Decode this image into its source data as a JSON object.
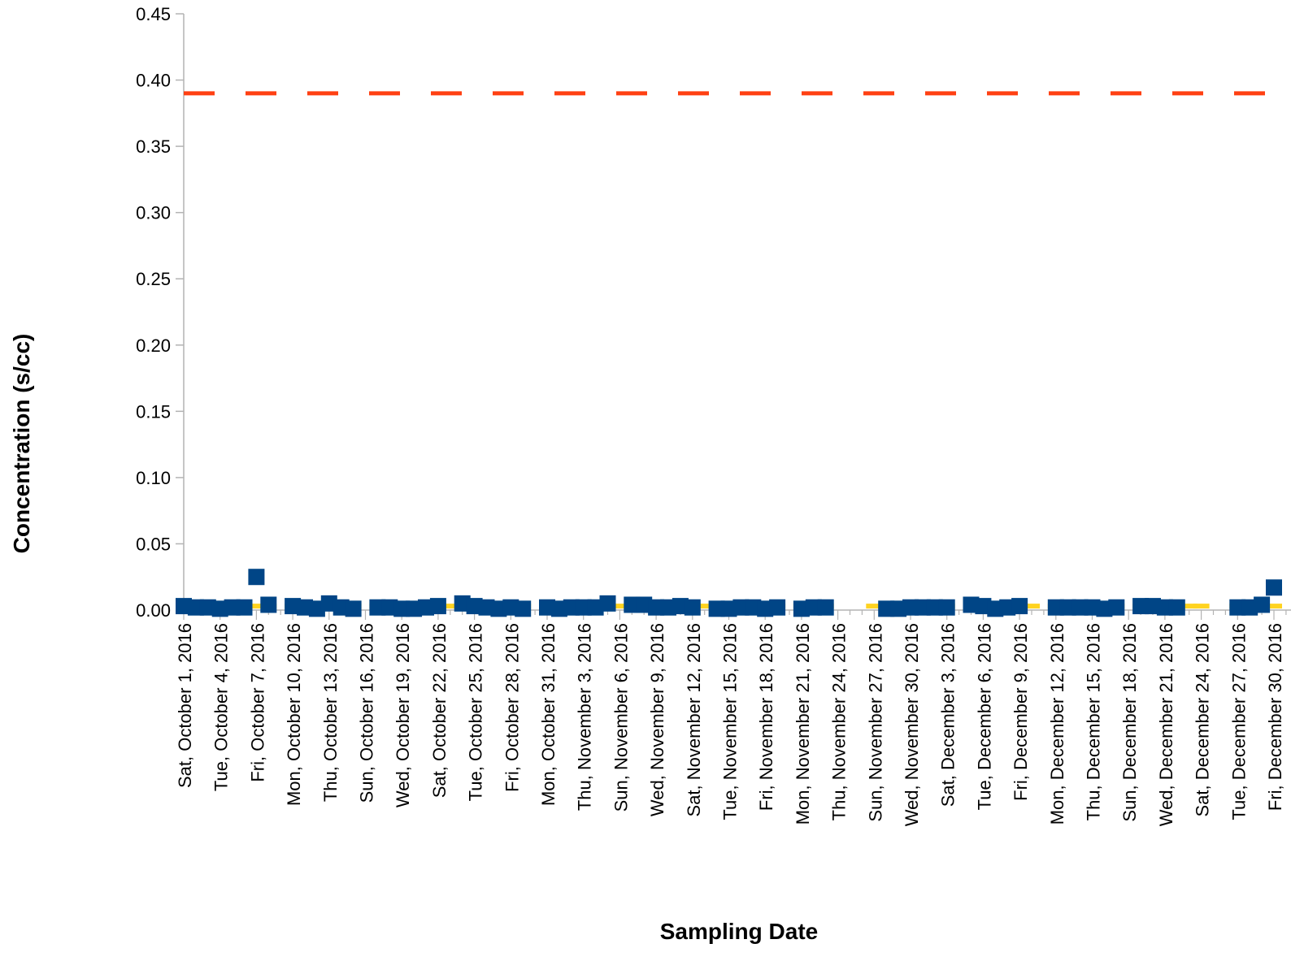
{
  "chart_data": {
    "type": "scatter",
    "ylabel": "Concentration (s/cc)",
    "xlabel": "Sampling Date",
    "ylim": [
      0,
      0.45
    ],
    "yticks": [
      "0.00",
      "0.05",
      "0.10",
      "0.15",
      "0.20",
      "0.25",
      "0.30",
      "0.35",
      "0.40",
      "0.45"
    ],
    "x_axis_type": "date",
    "x_start": "2016-10-01",
    "x_end": "2016-12-30",
    "x_tick_interval_days": 3,
    "xtick_labels": [
      "Sat, October 1, 2016",
      "Tue, October 4, 2016",
      "Fri, October 7, 2016",
      "Mon, October 10, 2016",
      "Thu, October 13, 2016",
      "Sun, October 16, 2016",
      "Wed, October 19, 2016",
      "Sat, October 22, 2016",
      "Tue, October 25, 2016",
      "Fri, October 28, 2016",
      "Mon, October 31, 2016",
      "Thu, November 3, 2016",
      "Sun, November 6, 2016",
      "Wed, November 9, 2016",
      "Sat, November 12, 2016",
      "Tue, November 15, 2016",
      "Fri, November 18, 2016",
      "Mon, November 21, 2016",
      "Thu, November 24, 2016",
      "Sun, November 27, 2016",
      "Wed, November 30, 2016",
      "Sat, December 3, 2016",
      "Tue, December 6, 2016",
      "Fri, December 9, 2016",
      "Mon, December 12, 2016",
      "Thu, December 15, 2016",
      "Sun, December 18, 2016",
      "Wed, December 21, 2016",
      "Sat, December 24, 2016",
      "Tue, December 27, 2016",
      "Fri, December 30, 2016"
    ],
    "grid": false,
    "legend": "none",
    "reference_lines": [
      {
        "y": 0.39,
        "style": "dashed",
        "color": "#ff4013"
      }
    ],
    "series": [
      {
        "marker": "square",
        "color": "#004586",
        "points": [
          {
            "date": "2016-10-01",
            "y": 0.003
          },
          {
            "date": "2016-10-02",
            "y": 0.002
          },
          {
            "date": "2016-10-03",
            "y": 0.002
          },
          {
            "date": "2016-10-04",
            "y": 0.001
          },
          {
            "date": "2016-10-05",
            "y": 0.002
          },
          {
            "date": "2016-10-06",
            "y": 0.002
          },
          {
            "date": "2016-10-07",
            "y": 0.025
          },
          {
            "date": "2016-10-08",
            "y": 0.004
          },
          {
            "date": "2016-10-10",
            "y": 0.003
          },
          {
            "date": "2016-10-11",
            "y": 0.002
          },
          {
            "date": "2016-10-12",
            "y": 0.001
          },
          {
            "date": "2016-10-13",
            "y": 0.005
          },
          {
            "date": "2016-10-14",
            "y": 0.002
          },
          {
            "date": "2016-10-15",
            "y": 0.001
          },
          {
            "date": "2016-10-17",
            "y": 0.002
          },
          {
            "date": "2016-10-18",
            "y": 0.002
          },
          {
            "date": "2016-10-19",
            "y": 0.001
          },
          {
            "date": "2016-10-20",
            "y": 0.001
          },
          {
            "date": "2016-10-21",
            "y": 0.002
          },
          {
            "date": "2016-10-22",
            "y": 0.003
          },
          {
            "date": "2016-10-24",
            "y": 0.005
          },
          {
            "date": "2016-10-25",
            "y": 0.003
          },
          {
            "date": "2016-10-26",
            "y": 0.002
          },
          {
            "date": "2016-10-27",
            "y": 0.001
          },
          {
            "date": "2016-10-28",
            "y": 0.002
          },
          {
            "date": "2016-10-29",
            "y": 0.001
          },
          {
            "date": "2016-10-31",
            "y": 0.002
          },
          {
            "date": "2016-11-01",
            "y": 0.001
          },
          {
            "date": "2016-11-02",
            "y": 0.002
          },
          {
            "date": "2016-11-03",
            "y": 0.002
          },
          {
            "date": "2016-11-04",
            "y": 0.002
          },
          {
            "date": "2016-11-05",
            "y": 0.005
          },
          {
            "date": "2016-11-07",
            "y": 0.004
          },
          {
            "date": "2016-11-08",
            "y": 0.004
          },
          {
            "date": "2016-11-09",
            "y": 0.002
          },
          {
            "date": "2016-11-10",
            "y": 0.002
          },
          {
            "date": "2016-11-11",
            "y": 0.003
          },
          {
            "date": "2016-11-12",
            "y": 0.002
          },
          {
            "date": "2016-11-14",
            "y": 0.001
          },
          {
            "date": "2016-11-15",
            "y": 0.001
          },
          {
            "date": "2016-11-16",
            "y": 0.002
          },
          {
            "date": "2016-11-17",
            "y": 0.002
          },
          {
            "date": "2016-11-18",
            "y": 0.001
          },
          {
            "date": "2016-11-19",
            "y": 0.002
          },
          {
            "date": "2016-11-21",
            "y": 0.001
          },
          {
            "date": "2016-11-22",
            "y": 0.002
          },
          {
            "date": "2016-11-23",
            "y": 0.002
          },
          {
            "date": "2016-11-28",
            "y": 0.001
          },
          {
            "date": "2016-11-29",
            "y": 0.001
          },
          {
            "date": "2016-11-30",
            "y": 0.002
          },
          {
            "date": "2016-12-01",
            "y": 0.002
          },
          {
            "date": "2016-12-02",
            "y": 0.002
          },
          {
            "date": "2016-12-03",
            "y": 0.002
          },
          {
            "date": "2016-12-05",
            "y": 0.004
          },
          {
            "date": "2016-12-06",
            "y": 0.003
          },
          {
            "date": "2016-12-07",
            "y": 0.001
          },
          {
            "date": "2016-12-08",
            "y": 0.002
          },
          {
            "date": "2016-12-09",
            "y": 0.003
          },
          {
            "date": "2016-12-12",
            "y": 0.002
          },
          {
            "date": "2016-12-13",
            "y": 0.002
          },
          {
            "date": "2016-12-14",
            "y": 0.002
          },
          {
            "date": "2016-12-15",
            "y": 0.002
          },
          {
            "date": "2016-12-16",
            "y": 0.001
          },
          {
            "date": "2016-12-17",
            "y": 0.002
          },
          {
            "date": "2016-12-19",
            "y": 0.003
          },
          {
            "date": "2016-12-20",
            "y": 0.003
          },
          {
            "date": "2016-12-21",
            "y": 0.002
          },
          {
            "date": "2016-12-22",
            "y": 0.002
          },
          {
            "date": "2016-12-27",
            "y": 0.002
          },
          {
            "date": "2016-12-28",
            "y": 0.002
          },
          {
            "date": "2016-12-29",
            "y": 0.004
          },
          {
            "date": "2016-12-30",
            "y": 0.017
          }
        ]
      },
      {
        "marker": "dash",
        "color": "#ffd320",
        "points": [
          {
            "date": "2016-10-01",
            "y": 0.003
          },
          {
            "date": "2016-10-02",
            "y": 0.003
          },
          {
            "date": "2016-10-03",
            "y": 0.003
          },
          {
            "date": "2016-10-04",
            "y": 0.003
          },
          {
            "date": "2016-10-05",
            "y": 0.003
          },
          {
            "date": "2016-10-06",
            "y": 0.003
          },
          {
            "date": "2016-10-07",
            "y": 0.003
          },
          {
            "date": "2016-10-08",
            "y": 0.003
          },
          {
            "date": "2016-10-10",
            "y": 0.003
          },
          {
            "date": "2016-10-11",
            "y": 0.003
          },
          {
            "date": "2016-10-12",
            "y": 0.003
          },
          {
            "date": "2016-10-13",
            "y": 0.003
          },
          {
            "date": "2016-10-14",
            "y": 0.003
          },
          {
            "date": "2016-10-15",
            "y": 0.003
          },
          {
            "date": "2016-10-17",
            "y": 0.003
          },
          {
            "date": "2016-10-18",
            "y": 0.003
          },
          {
            "date": "2016-10-19",
            "y": 0.003
          },
          {
            "date": "2016-10-20",
            "y": 0.003
          },
          {
            "date": "2016-10-21",
            "y": 0.003
          },
          {
            "date": "2016-10-22",
            "y": 0.003
          },
          {
            "date": "2016-10-23",
            "y": 0.003
          },
          {
            "date": "2016-10-24",
            "y": 0.003
          },
          {
            "date": "2016-10-25",
            "y": 0.003
          },
          {
            "date": "2016-10-26",
            "y": 0.003
          },
          {
            "date": "2016-10-27",
            "y": 0.003
          },
          {
            "date": "2016-10-28",
            "y": 0.003
          },
          {
            "date": "2016-10-29",
            "y": 0.003
          },
          {
            "date": "2016-10-31",
            "y": 0.003
          },
          {
            "date": "2016-11-01",
            "y": 0.003
          },
          {
            "date": "2016-11-02",
            "y": 0.003
          },
          {
            "date": "2016-11-03",
            "y": 0.003
          },
          {
            "date": "2016-11-04",
            "y": 0.003
          },
          {
            "date": "2016-11-05",
            "y": 0.003
          },
          {
            "date": "2016-11-06",
            "y": 0.003
          },
          {
            "date": "2016-11-07",
            "y": 0.003
          },
          {
            "date": "2016-11-08",
            "y": 0.003
          },
          {
            "date": "2016-11-09",
            "y": 0.003
          },
          {
            "date": "2016-11-10",
            "y": 0.003
          },
          {
            "date": "2016-11-11",
            "y": 0.003
          },
          {
            "date": "2016-11-12",
            "y": 0.003
          },
          {
            "date": "2016-11-13",
            "y": 0.003
          },
          {
            "date": "2016-11-14",
            "y": 0.003
          },
          {
            "date": "2016-11-15",
            "y": 0.003
          },
          {
            "date": "2016-11-16",
            "y": 0.003
          },
          {
            "date": "2016-11-17",
            "y": 0.003
          },
          {
            "date": "2016-11-18",
            "y": 0.003
          },
          {
            "date": "2016-11-19",
            "y": 0.003
          },
          {
            "date": "2016-11-21",
            "y": 0.003
          },
          {
            "date": "2016-11-22",
            "y": 0.003
          },
          {
            "date": "2016-11-23",
            "y": 0.003
          },
          {
            "date": "2016-11-27",
            "y": 0.003
          },
          {
            "date": "2016-11-28",
            "y": 0.003
          },
          {
            "date": "2016-11-29",
            "y": 0.003
          },
          {
            "date": "2016-11-30",
            "y": 0.003
          },
          {
            "date": "2016-12-01",
            "y": 0.003
          },
          {
            "date": "2016-12-02",
            "y": 0.003
          },
          {
            "date": "2016-12-03",
            "y": 0.003
          },
          {
            "date": "2016-12-05",
            "y": 0.003
          },
          {
            "date": "2016-12-06",
            "y": 0.003
          },
          {
            "date": "2016-12-07",
            "y": 0.003
          },
          {
            "date": "2016-12-08",
            "y": 0.003
          },
          {
            "date": "2016-12-09",
            "y": 0.003
          },
          {
            "date": "2016-12-10",
            "y": 0.003
          },
          {
            "date": "2016-12-12",
            "y": 0.003
          },
          {
            "date": "2016-12-13",
            "y": 0.003
          },
          {
            "date": "2016-12-14",
            "y": 0.003
          },
          {
            "date": "2016-12-15",
            "y": 0.003
          },
          {
            "date": "2016-12-16",
            "y": 0.003
          },
          {
            "date": "2016-12-17",
            "y": 0.003
          },
          {
            "date": "2016-12-19",
            "y": 0.003
          },
          {
            "date": "2016-12-20",
            "y": 0.003
          },
          {
            "date": "2016-12-21",
            "y": 0.003
          },
          {
            "date": "2016-12-22",
            "y": 0.003
          },
          {
            "date": "2016-12-23",
            "y": 0.003
          },
          {
            "date": "2016-12-24",
            "y": 0.003
          },
          {
            "date": "2016-12-27",
            "y": 0.003
          },
          {
            "date": "2016-12-28",
            "y": 0.003
          },
          {
            "date": "2016-12-29",
            "y": 0.003
          },
          {
            "date": "2016-12-30",
            "y": 0.003
          }
        ]
      }
    ]
  }
}
